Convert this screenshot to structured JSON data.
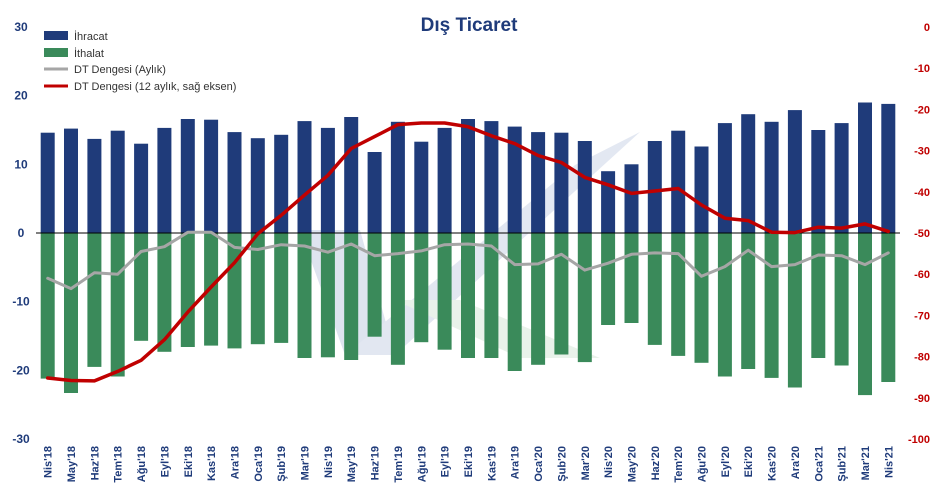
{
  "chart_data": {
    "type": "bar",
    "title": "Dış Ticaret",
    "categories": [
      "Nis'18",
      "May'18",
      "Haz'18",
      "Tem'18",
      "Ağu'18",
      "Eyl'18",
      "Eki'18",
      "Kas'18",
      "Ara'18",
      "Oca'19",
      "Şub'19",
      "Mar'19",
      "Nis'19",
      "May'19",
      "Haz'19",
      "Tem'19",
      "Ağu'19",
      "Eyl'19",
      "Eki'19",
      "Kas'19",
      "Ara'19",
      "Oca'20",
      "Şub'20",
      "Mar'20",
      "Nis'20",
      "May'20",
      "Haz'20",
      "Tem'20",
      "Ağu'20",
      "Eyl'20",
      "Eki'20",
      "Kas'20",
      "Ara'20",
      "Oca'21",
      "Şub'21",
      "Mar'21",
      "Nis'21"
    ],
    "series": [
      {
        "name": "İhracat",
        "type": "bar",
        "axis": "left",
        "color": "#1f3b7a",
        "values": [
          14.6,
          15.2,
          13.7,
          14.9,
          13.0,
          15.3,
          16.6,
          16.5,
          14.7,
          13.8,
          14.3,
          16.3,
          15.3,
          16.9,
          11.8,
          16.2,
          13.3,
          15.3,
          16.6,
          16.3,
          15.5,
          14.7,
          14.6,
          13.4,
          9.0,
          10.0,
          13.4,
          14.9,
          12.6,
          16.0,
          17.3,
          16.2,
          17.9,
          15.0,
          16.0,
          19.0,
          18.8
        ]
      },
      {
        "name": "İthalat",
        "type": "bar",
        "axis": "left",
        "color": "#3a8a5a",
        "values": [
          -21.2,
          -23.3,
          -19.5,
          -20.9,
          -15.7,
          -17.3,
          -16.6,
          -16.4,
          -16.8,
          -16.2,
          -16.0,
          -18.2,
          -18.1,
          -18.5,
          -15.1,
          -19.2,
          -15.9,
          -17.0,
          -18.2,
          -18.2,
          -20.1,
          -19.2,
          -17.7,
          -18.8,
          -13.4,
          -13.1,
          -16.3,
          -17.9,
          -18.9,
          -20.9,
          -19.8,
          -21.1,
          -22.5,
          -18.2,
          -19.3,
          -23.6,
          -21.7
        ]
      },
      {
        "name": "DT Dengesi (Aylık)",
        "type": "line",
        "axis": "left",
        "color": "#a6a6a6",
        "values": [
          -6.6,
          -8.1,
          -5.8,
          -6.0,
          -2.7,
          -2.0,
          0.1,
          0.1,
          -2.1,
          -2.4,
          -1.7,
          -1.9,
          -2.8,
          -1.6,
          -3.3,
          -3.0,
          -2.6,
          -1.7,
          -1.6,
          -1.9,
          -4.6,
          -4.5,
          -3.1,
          -5.4,
          -4.4,
          -3.1,
          -2.9,
          -3.0,
          -6.3,
          -4.9,
          -2.5,
          -4.9,
          -4.6,
          -3.2,
          -3.3,
          -4.6,
          -2.9
        ]
      },
      {
        "name": "DT Dengesi (12 aylık, sağ eksen)",
        "type": "line",
        "axis": "right",
        "color": "#c00000",
        "values": [
          -85.2,
          -85.8,
          -85.9,
          -83.6,
          -80.9,
          -75.9,
          -69.2,
          -63.1,
          -57.2,
          -50.2,
          -45.7,
          -40.8,
          -36.0,
          -29.5,
          -26.6,
          -23.7,
          -23.3,
          -23.3,
          -24.2,
          -26.4,
          -28.3,
          -31.2,
          -32.9,
          -36.5,
          -38.3,
          -40.4,
          -39.8,
          -39.2,
          -43.2,
          -46.4,
          -47.0,
          -49.8,
          -49.9,
          -48.6,
          -48.8,
          -47.8,
          -49.6
        ]
      }
    ],
    "left_axis": {
      "ylim": [
        -30,
        30
      ],
      "ticks": [
        "30",
        "20",
        "10",
        "0",
        "-10",
        "-20",
        "-30"
      ]
    },
    "right_axis": {
      "ylim": [
        -100,
        0
      ],
      "ticks": [
        "0",
        "-10",
        "-20",
        "-30",
        "-40",
        "-50",
        "-60",
        "-70",
        "-80",
        "-90",
        "-100"
      ]
    },
    "legend_position": "top-left",
    "grid": false
  }
}
